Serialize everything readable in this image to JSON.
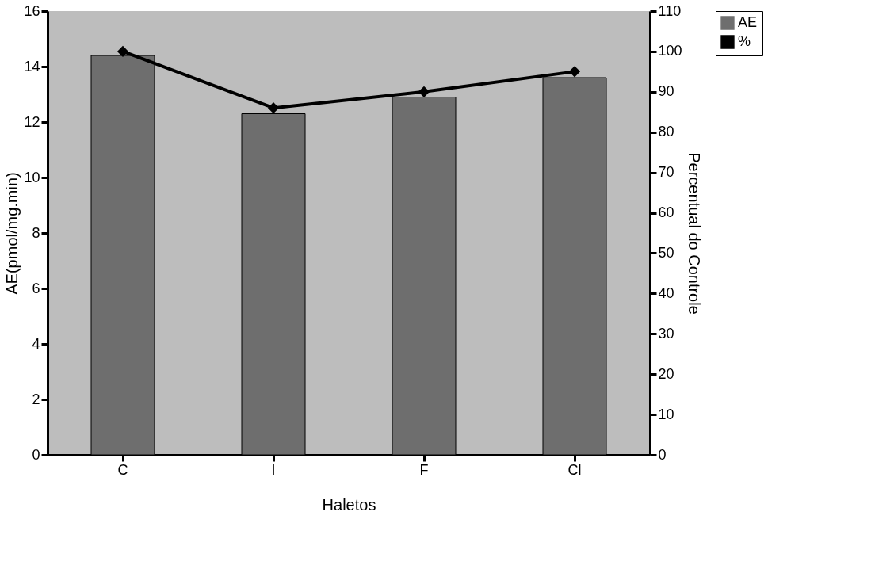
{
  "chart_data": {
    "type": "bar",
    "xlabel": "Haletos",
    "ylabel": "AE(pmol/mg.min)",
    "y2label": "Percentual do Controle",
    "categories": [
      "C",
      "I",
      "F",
      "Cl"
    ],
    "series": [
      {
        "name": "AE",
        "color": "#6e6e6e",
        "values": [
          14.4,
          12.3,
          12.9,
          13.6
        ]
      },
      {
        "name": "%",
        "type": "line",
        "axis": "y2",
        "color": "#000000",
        "values": [
          100,
          86,
          90,
          95
        ]
      }
    ],
    "ylim": [
      0,
      16
    ],
    "yticks": [
      0,
      2,
      4,
      6,
      8,
      10,
      12,
      14,
      16
    ],
    "y2lim": [
      0,
      110
    ],
    "y2ticks": [
      0,
      10,
      20,
      30,
      40,
      50,
      60,
      70,
      80,
      90,
      100,
      110
    ],
    "marker": "diamond",
    "grid": false,
    "legend": "top right"
  }
}
